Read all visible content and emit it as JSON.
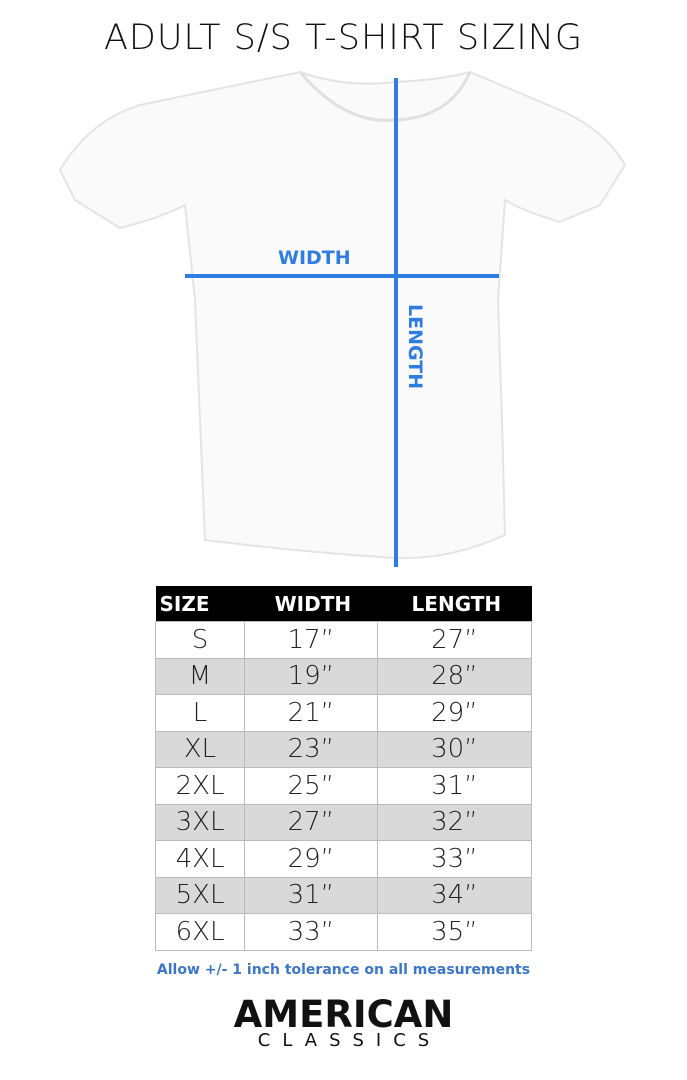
{
  "title": "ADULT S/S T-SHIRT SIZING",
  "diagram": {
    "width_label": "WIDTH",
    "length_label": "LENGTH",
    "line_color": "#2f7de1"
  },
  "table": {
    "headers": [
      "SIZE",
      "WIDTH",
      "LENGTH"
    ],
    "rows": [
      [
        "S",
        "17”",
        "27”"
      ],
      [
        "M",
        "19”",
        "28”"
      ],
      [
        "L",
        "21”",
        "29”"
      ],
      [
        "XL",
        "23”",
        "30”"
      ],
      [
        "2XL",
        "25”",
        "31”"
      ],
      [
        "3XL",
        "27”",
        "32”"
      ],
      [
        "4XL",
        "29”",
        "33”"
      ],
      [
        "5XL",
        "31”",
        "34”"
      ],
      [
        "6XL",
        "33”",
        "35”"
      ]
    ]
  },
  "note": "Allow +/- 1 inch tolerance on all measurements",
  "logo": {
    "line1": "AMERICAN",
    "line2": "CLASSICS"
  }
}
